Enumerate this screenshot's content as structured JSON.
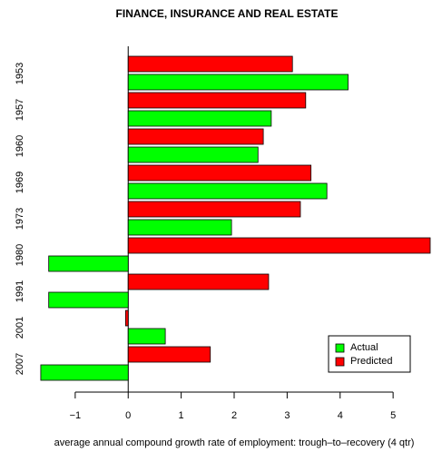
{
  "chart_data": {
    "type": "hbar",
    "title": "FINANCE, INSURANCE AND REAL ESTATE",
    "x_label": "average annual compound growth rate of employment: trough–to–recovery (4 qtr)",
    "categories": [
      "1953",
      "1957",
      "1960",
      "1969",
      "1973",
      "1980",
      "1991",
      "2001",
      "2007"
    ],
    "series": [
      {
        "name": "Actual",
        "color": "#00ff00",
        "values": [
          4.15,
          2.7,
          2.45,
          3.75,
          1.95,
          -1.5,
          -1.5,
          0.7,
          -1.65
        ]
      },
      {
        "name": "Predicted",
        "color": "#ff0000",
        "values": [
          3.1,
          3.35,
          2.55,
          3.45,
          3.25,
          5.7,
          2.65,
          -0.05,
          1.55
        ]
      }
    ],
    "xlim": [
      -1.7,
      5.7
    ],
    "xticks": [
      {
        "value": -1,
        "label": "−1"
      },
      0,
      1,
      2,
      3,
      4,
      5
    ],
    "legend": "bottom-right"
  }
}
